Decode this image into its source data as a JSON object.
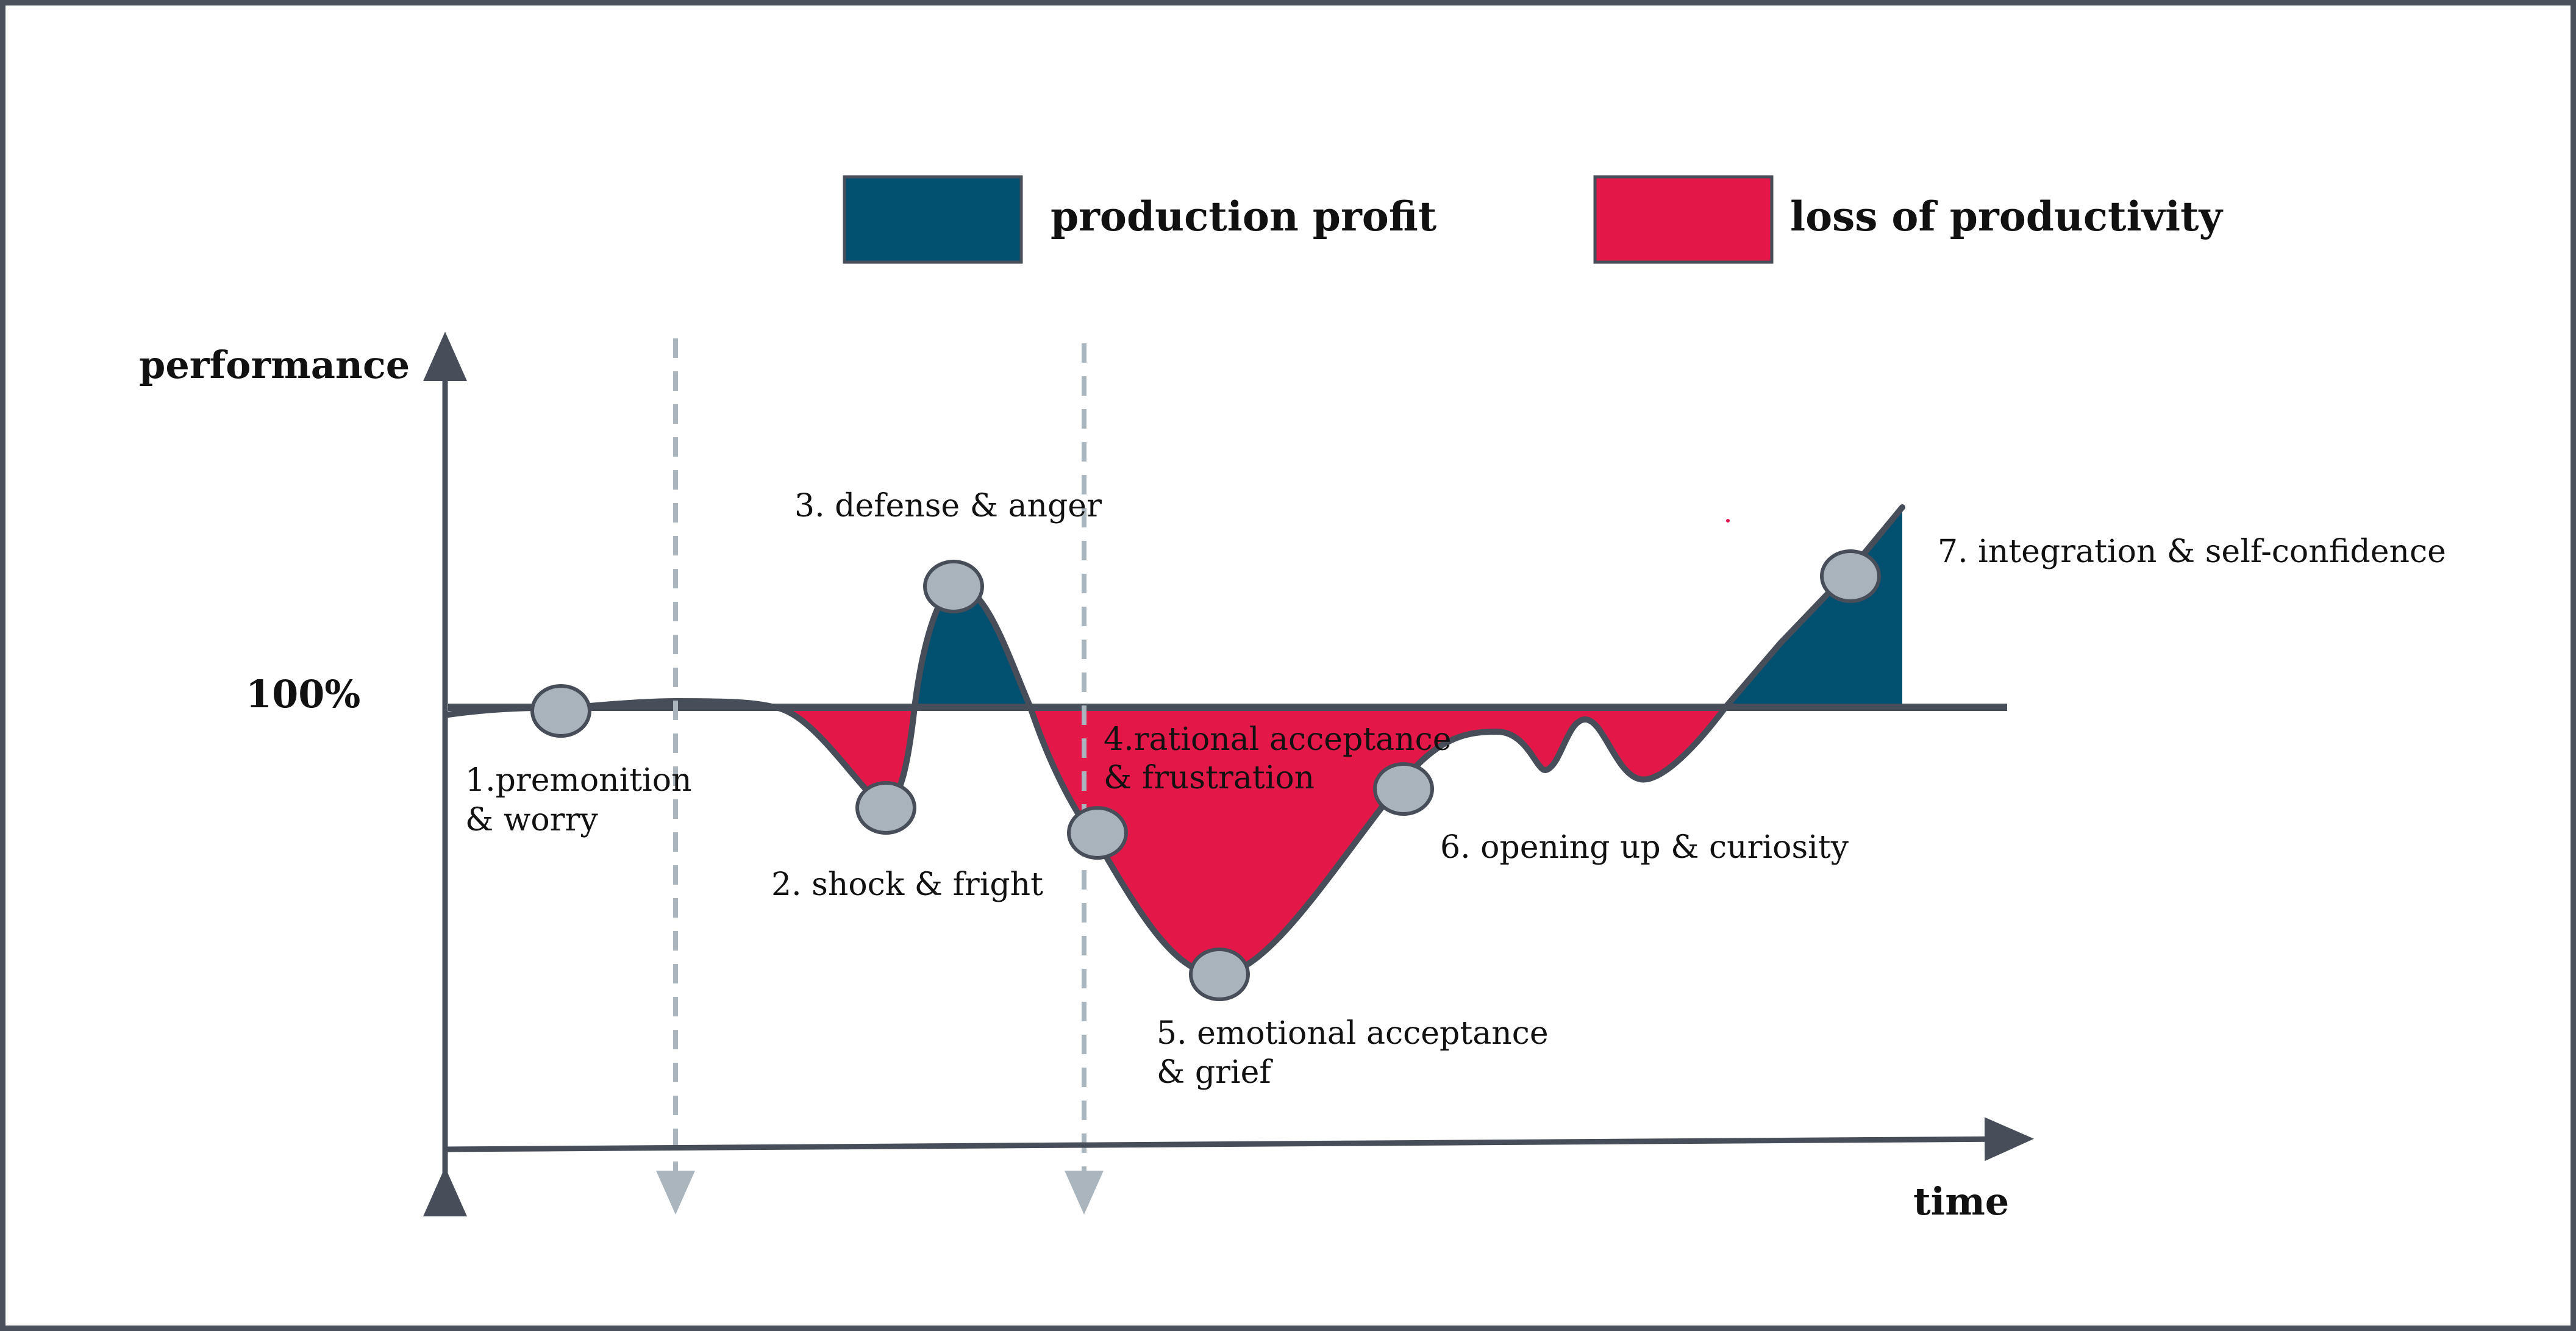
{
  "colors": {
    "production_profit": "#02506f",
    "loss_of_productivity": "#e31848",
    "axis": "#474e5a",
    "marker": "#a8b3bc",
    "guide": "#aab5bd"
  },
  "legend": {
    "production_profit": "production profit",
    "loss_of_productivity": "loss of productivity"
  },
  "axes": {
    "y_label": "performance",
    "x_label": "time",
    "baseline_label": "100%"
  },
  "stages": [
    {
      "id": 1,
      "line1": "1.premonition",
      "line2": "& worry"
    },
    {
      "id": 2,
      "line1": "2. shock & fright",
      "line2": ""
    },
    {
      "id": 3,
      "line1": "3. defense & anger",
      "line2": ""
    },
    {
      "id": 4,
      "line1": "4.rational acceptance",
      "line2": "& frustration"
    },
    {
      "id": 5,
      "line1": "5. emotional acceptance",
      "line2": "& grief"
    },
    {
      "id": 6,
      "line1": "6. opening up & curiosity",
      "line2": ""
    },
    {
      "id": 7,
      "line1": "7. integration & self-confidence",
      "line2": ""
    }
  ]
}
